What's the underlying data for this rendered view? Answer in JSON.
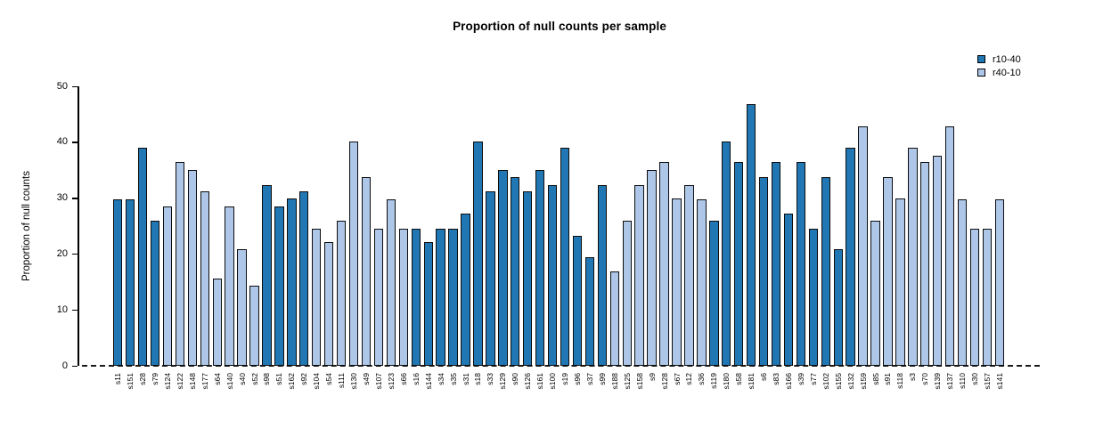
{
  "page": {
    "background": "#ffffff"
  },
  "chart_data": {
    "type": "bar",
    "title": "Proportion of null counts per sample",
    "ylabel": "Proportion of null counts",
    "xlabel": "",
    "ylim": [
      0,
      50
    ],
    "yticks": [
      0,
      10,
      20,
      30,
      40,
      50
    ],
    "grid": false,
    "baseline_style": "dashed",
    "legend_position": "top-right",
    "legend": [
      {
        "label": "r10-40",
        "color": "#2077B4"
      },
      {
        "label": "r40-10",
        "color": "#AEC7E8"
      }
    ],
    "bar_outline_color": "#0d0d0d",
    "samples": [
      {
        "id": "s11",
        "group": "r10-40",
        "value": 29.8
      },
      {
        "id": "s151",
        "group": "r10-40",
        "value": 29.8
      },
      {
        "id": "s28",
        "group": "r10-40",
        "value": 39.0
      },
      {
        "id": "s79",
        "group": "r10-40",
        "value": 25.9
      },
      {
        "id": "s124",
        "group": "r40-10",
        "value": 28.5
      },
      {
        "id": "s122",
        "group": "r40-10",
        "value": 36.4
      },
      {
        "id": "s148",
        "group": "r40-10",
        "value": 35.0
      },
      {
        "id": "s177",
        "group": "r40-10",
        "value": 31.2
      },
      {
        "id": "s64",
        "group": "r40-10",
        "value": 15.6
      },
      {
        "id": "s140",
        "group": "r40-10",
        "value": 28.5
      },
      {
        "id": "s40",
        "group": "r40-10",
        "value": 20.8
      },
      {
        "id": "s52",
        "group": "r40-10",
        "value": 14.3
      },
      {
        "id": "s98",
        "group": "r10-40",
        "value": 32.4
      },
      {
        "id": "s51",
        "group": "r10-40",
        "value": 28.5
      },
      {
        "id": "s162",
        "group": "r10-40",
        "value": 29.9
      },
      {
        "id": "s92",
        "group": "r10-40",
        "value": 31.2
      },
      {
        "id": "s104",
        "group": "r40-10",
        "value": 24.5
      },
      {
        "id": "s54",
        "group": "r40-10",
        "value": 22.1
      },
      {
        "id": "s111",
        "group": "r40-10",
        "value": 26.0
      },
      {
        "id": "s130",
        "group": "r40-10",
        "value": 40.2
      },
      {
        "id": "s49",
        "group": "r40-10",
        "value": 33.7
      },
      {
        "id": "s107",
        "group": "r40-10",
        "value": 24.5
      },
      {
        "id": "s123",
        "group": "r40-10",
        "value": 29.8
      },
      {
        "id": "s66",
        "group": "r40-10",
        "value": 24.5
      },
      {
        "id": "s16",
        "group": "r10-40",
        "value": 24.5
      },
      {
        "id": "s144",
        "group": "r10-40",
        "value": 22.1
      },
      {
        "id": "s34",
        "group": "r10-40",
        "value": 24.5
      },
      {
        "id": "s35",
        "group": "r10-40",
        "value": 24.5
      },
      {
        "id": "s31",
        "group": "r10-40",
        "value": 27.3
      },
      {
        "id": "s18",
        "group": "r10-40",
        "value": 40.2
      },
      {
        "id": "s33",
        "group": "r10-40",
        "value": 31.2
      },
      {
        "id": "s129",
        "group": "r10-40",
        "value": 35.0
      },
      {
        "id": "s90",
        "group": "r10-40",
        "value": 33.7
      },
      {
        "id": "s126",
        "group": "r10-40",
        "value": 31.2
      },
      {
        "id": "s161",
        "group": "r10-40",
        "value": 35.0
      },
      {
        "id": "s100",
        "group": "r10-40",
        "value": 32.4
      },
      {
        "id": "s19",
        "group": "r10-40",
        "value": 39.0
      },
      {
        "id": "s96",
        "group": "r10-40",
        "value": 23.3
      },
      {
        "id": "s37",
        "group": "r10-40",
        "value": 19.5
      },
      {
        "id": "s99",
        "group": "r10-40",
        "value": 32.4
      },
      {
        "id": "s188",
        "group": "r40-10",
        "value": 16.9
      },
      {
        "id": "s125",
        "group": "r40-10",
        "value": 26.0
      },
      {
        "id": "s158",
        "group": "r40-10",
        "value": 32.4
      },
      {
        "id": "s9",
        "group": "r40-10",
        "value": 35.0
      },
      {
        "id": "s128",
        "group": "r40-10",
        "value": 36.4
      },
      {
        "id": "s67",
        "group": "r40-10",
        "value": 29.9
      },
      {
        "id": "s12",
        "group": "r40-10",
        "value": 32.4
      },
      {
        "id": "s36",
        "group": "r40-10",
        "value": 29.8
      },
      {
        "id": "s119",
        "group": "r10-40",
        "value": 26.0
      },
      {
        "id": "s180",
        "group": "r10-40",
        "value": 40.2
      },
      {
        "id": "s58",
        "group": "r10-40",
        "value": 36.4
      },
      {
        "id": "s181",
        "group": "r10-40",
        "value": 46.8
      },
      {
        "id": "s6",
        "group": "r10-40",
        "value": 33.7
      },
      {
        "id": "s83",
        "group": "r10-40",
        "value": 36.4
      },
      {
        "id": "s166",
        "group": "r10-40",
        "value": 27.3
      },
      {
        "id": "s39",
        "group": "r10-40",
        "value": 36.4
      },
      {
        "id": "s77",
        "group": "r10-40",
        "value": 24.5
      },
      {
        "id": "s102",
        "group": "r10-40",
        "value": 33.7
      },
      {
        "id": "s155",
        "group": "r10-40",
        "value": 20.8
      },
      {
        "id": "s132",
        "group": "r10-40",
        "value": 39.0
      },
      {
        "id": "s159",
        "group": "r40-10",
        "value": 42.9
      },
      {
        "id": "s85",
        "group": "r40-10",
        "value": 26.0
      },
      {
        "id": "s91",
        "group": "r40-10",
        "value": 33.7
      },
      {
        "id": "s118",
        "group": "r40-10",
        "value": 29.9
      },
      {
        "id": "s3",
        "group": "r40-10",
        "value": 39.0
      },
      {
        "id": "s70",
        "group": "r40-10",
        "value": 36.4
      },
      {
        "id": "s139",
        "group": "r40-10",
        "value": 37.6
      },
      {
        "id": "s137",
        "group": "r40-10",
        "value": 42.9
      },
      {
        "id": "s110",
        "group": "r40-10",
        "value": 29.8
      },
      {
        "id": "s30",
        "group": "r40-10",
        "value": 24.5
      },
      {
        "id": "s157",
        "group": "r40-10",
        "value": 24.5
      },
      {
        "id": "s141",
        "group": "r40-10",
        "value": 29.8
      }
    ]
  }
}
